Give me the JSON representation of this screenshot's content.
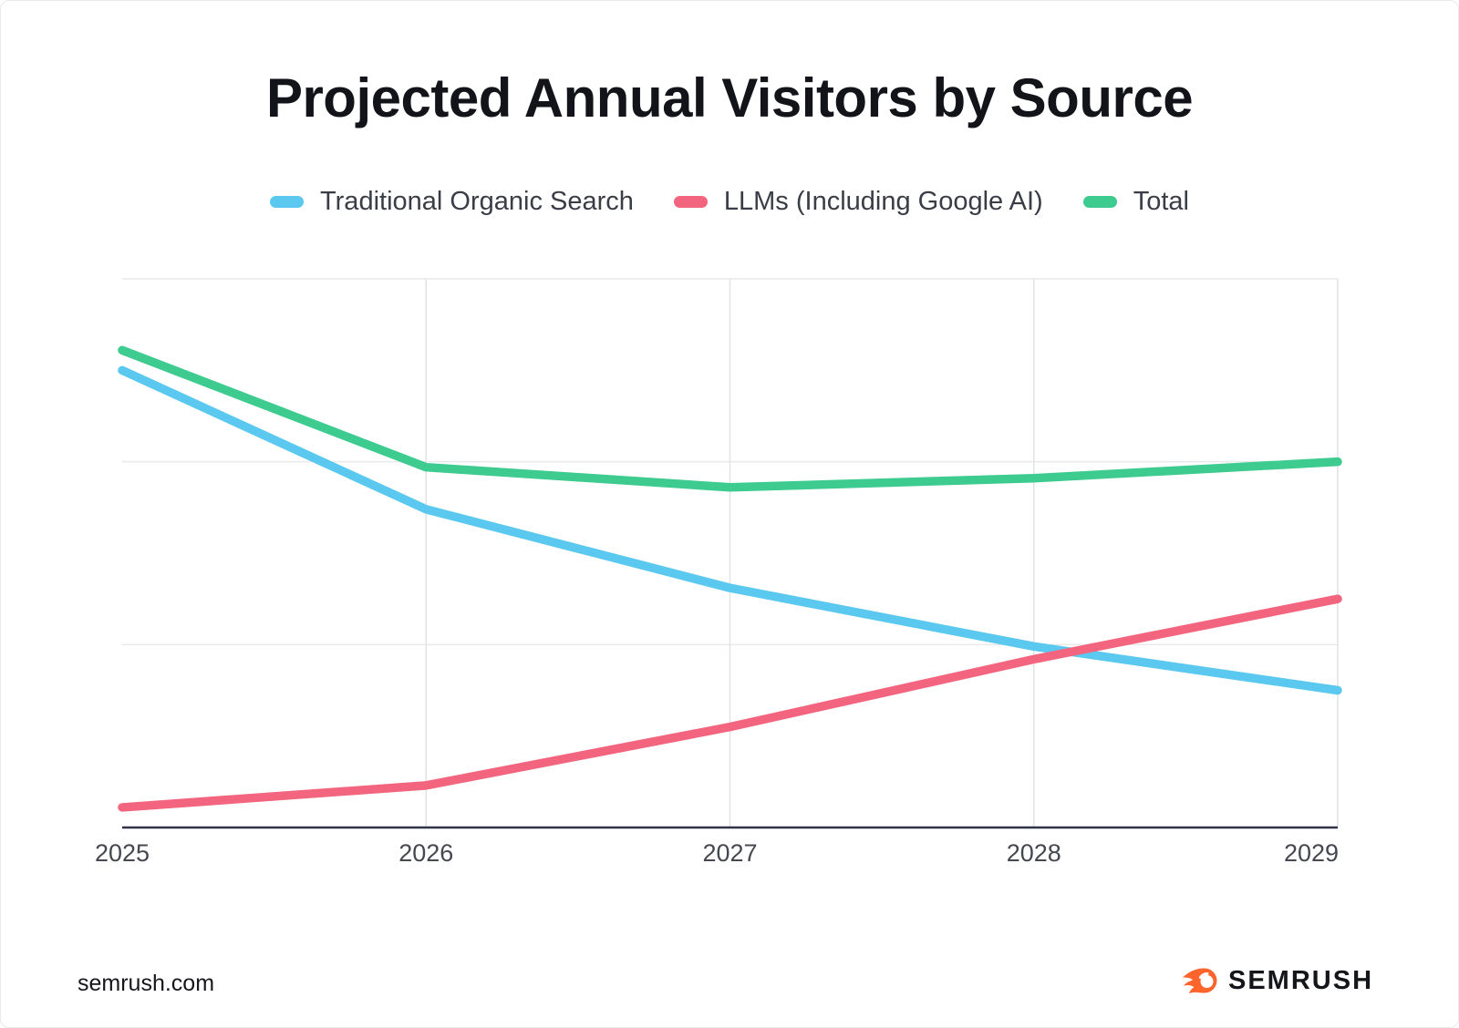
{
  "title": "Projected Annual Visitors by Source",
  "legend": [
    {
      "label": "Traditional Organic Search",
      "color": "#5bc8f0"
    },
    {
      "label": "LLMs (Including Google AI)",
      "color": "#f3647e"
    },
    {
      "label": "Total",
      "color": "#3dcb8f"
    }
  ],
  "footer": {
    "site": "semrush.com",
    "brand": "SEMRUSH",
    "logo_color": "#ff642d"
  },
  "chart_data": {
    "type": "line",
    "title": "Projected Annual Visitors by Source",
    "categories": [
      "2025",
      "2026",
      "2027",
      "2028",
      "2029"
    ],
    "series": [
      {
        "name": "Traditional Organic Search",
        "color": "#5bc8f0",
        "values": [
          2.5,
          1.74,
          1.31,
          0.99,
          0.75
        ]
      },
      {
        "name": "LLMs (Including Google AI)",
        "color": "#f3647e",
        "values": [
          0.11,
          0.23,
          0.55,
          0.92,
          1.25
        ]
      },
      {
        "name": "Total",
        "color": "#3dcb8f",
        "values": [
          2.61,
          1.97,
          1.86,
          1.91,
          2.0
        ]
      }
    ],
    "xlabel": "",
    "ylabel": "",
    "ylim": [
      0,
      3
    ],
    "y_tick_labels_shown": false,
    "values_unit": "relative gridline units (y-axis unlabeled)",
    "y_gridlines": [
      1,
      2,
      3
    ],
    "x_gridlines": [
      "2026",
      "2027",
      "2028",
      "2029"
    ],
    "grid_color_h": "#e8e9eb",
    "grid_color_v": "#e2e3e6",
    "axis_color": "#2f3347",
    "line_width": 9.5,
    "legend_position": "top"
  }
}
